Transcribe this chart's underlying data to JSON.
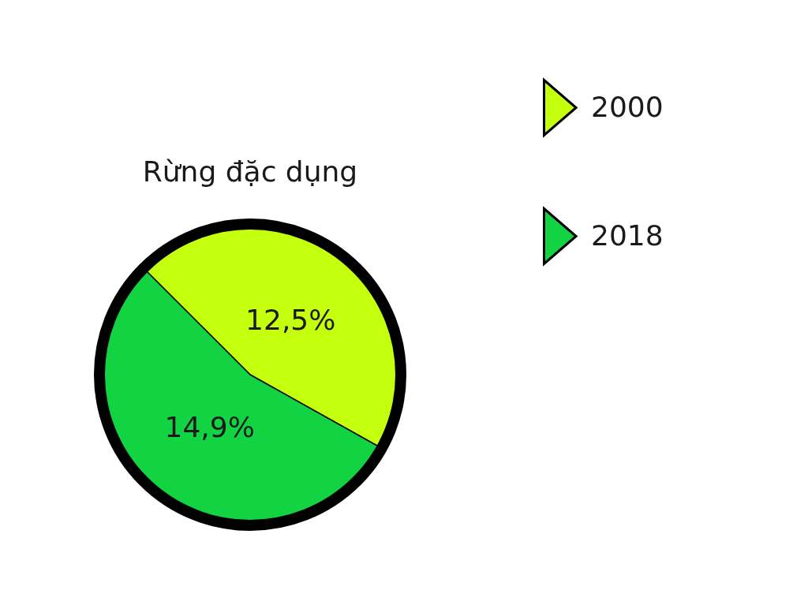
{
  "chart_data": {
    "type": "pie",
    "title": "Rừng đặc dụng",
    "categories": [
      "2000",
      "2018"
    ],
    "values": [
      12.5,
      14.9
    ],
    "colors": [
      "#c4ff0e",
      "#12d443"
    ],
    "value_labels": [
      "12,5%",
      "14,9%"
    ],
    "legend": "top right"
  }
}
